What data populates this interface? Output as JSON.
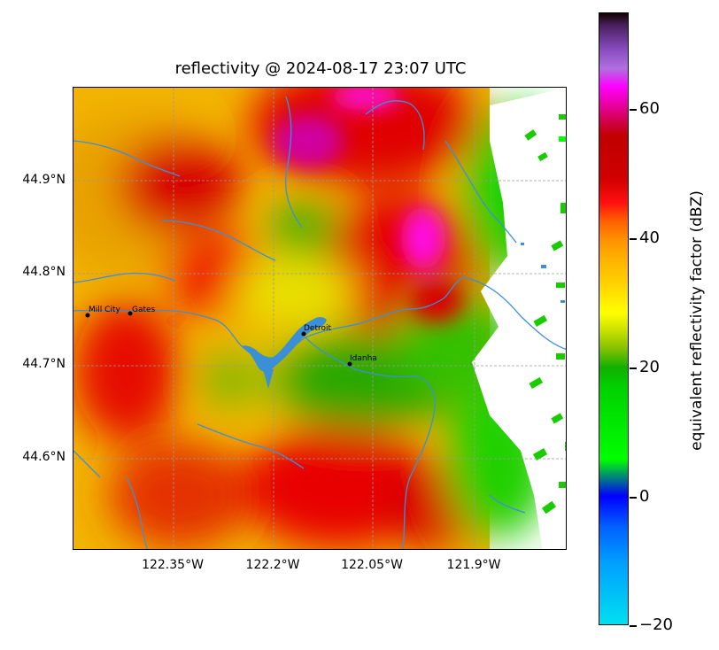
{
  "title": "reflectivity @ 2024-08-17 23:07 UTC",
  "colorbar": {
    "label": "equivalent reflectivity factor (dBZ)",
    "range": [
      -20,
      75
    ],
    "ticks": [
      "60",
      "40",
      "20",
      "0",
      "−20"
    ],
    "tick_values": [
      60,
      40,
      20,
      0,
      -20
    ]
  },
  "axes": {
    "lat_ticks": [
      "44.9°N",
      "44.8°N",
      "44.7°N",
      "44.6°N"
    ],
    "lon_ticks": [
      "122.35°W",
      "122.2°W",
      "122.05°W",
      "121.9°W"
    ],
    "gridlines": true
  },
  "cities": [
    {
      "name": "Mill City",
      "lon": -122.475,
      "lat": 44.754
    },
    {
      "name": "Gates",
      "lon": -122.414,
      "lat": 44.756
    },
    {
      "name": "Detroit",
      "lon": -122.15,
      "lat": 44.734
    },
    {
      "name": "Idanha",
      "lon": -122.081,
      "lat": 44.702
    }
  ],
  "colors": {
    "background": "#ffffff",
    "river": "#3d8fdb",
    "lake": "#3b8fd6",
    "gridline": "#9a9a9a"
  }
}
